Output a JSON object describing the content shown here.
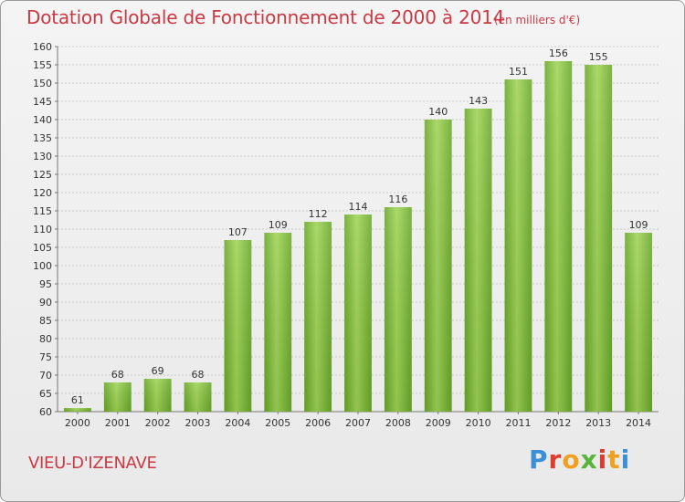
{
  "header": {
    "title": "Dotation Globale de Fonctionnement de 2000 à 2014",
    "subtitle": "(en milliers d'€)"
  },
  "footer": {
    "commune": "VIEU-D'IZENAVE",
    "logo_text": "Proxiti",
    "logo_colors": [
      "#3a8fd6",
      "#e23a2c",
      "#f0a020",
      "#59b53a",
      "#e23a2c",
      "#f0a020",
      "#3a8fd6"
    ]
  },
  "chart_data": {
    "type": "bar",
    "categories": [
      "2000",
      "2001",
      "2002",
      "2003",
      "2004",
      "2005",
      "2006",
      "2007",
      "2008",
      "2009",
      "2010",
      "2011",
      "2012",
      "2013",
      "2014"
    ],
    "values": [
      61,
      68,
      69,
      68,
      107,
      109,
      112,
      114,
      116,
      140,
      143,
      151,
      156,
      155,
      109
    ],
    "ylim": [
      60,
      160
    ],
    "yticks": [
      60,
      65,
      70,
      75,
      80,
      85,
      90,
      95,
      100,
      105,
      110,
      115,
      120,
      125,
      130,
      135,
      140,
      145,
      150,
      155,
      160
    ],
    "grid": true,
    "bar_color": "#7cb934",
    "bar_color_light": "#9fd455"
  }
}
